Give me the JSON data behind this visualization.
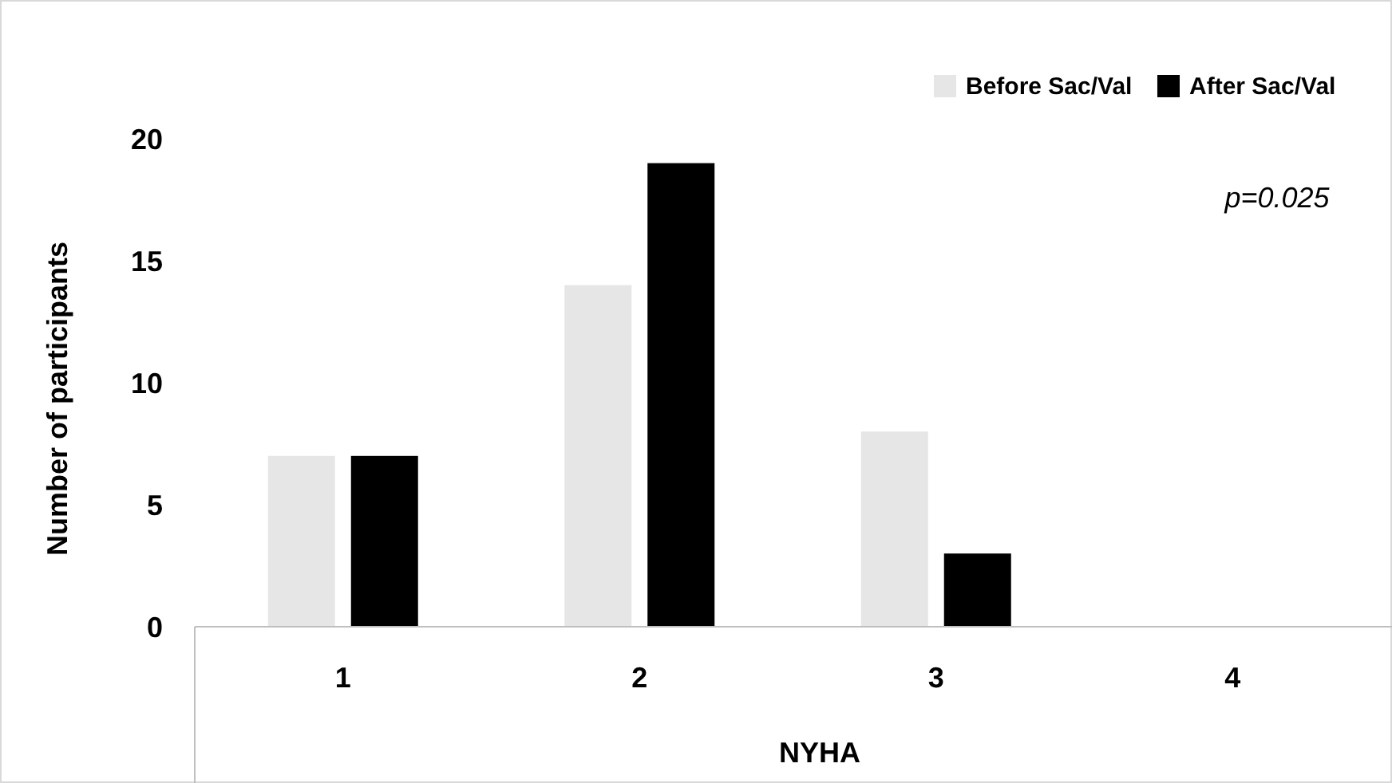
{
  "chart_data": {
    "type": "bar",
    "xlabel": "NYHA",
    "ylabel": "Number of participants",
    "categories": [
      "1",
      "2",
      "3",
      "4"
    ],
    "series": [
      {
        "name": "Before Sac/Val",
        "color": "#e6e6e6",
        "values": [
          7,
          14,
          8,
          0
        ]
      },
      {
        "name": "After Sac/Val",
        "color": "#000000",
        "values": [
          7,
          19,
          3,
          0
        ]
      }
    ],
    "ylim": [
      0,
      20
    ],
    "yticks": [
      0,
      5,
      10,
      15,
      20
    ],
    "grid": false,
    "legend": "top right",
    "annotations": [
      "p=0.025"
    ]
  }
}
